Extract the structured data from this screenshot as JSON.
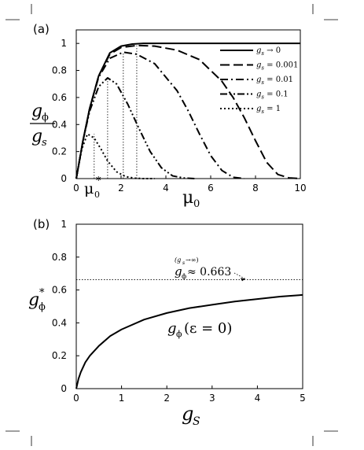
{
  "chart_data": [
    {
      "panel": "(a)",
      "type": "line",
      "ylabel_num": "g",
      "ylabel_num_sub": "ϕ",
      "ylabel_den": "g",
      "ylabel_den_sub": "s",
      "xlabel": "μ",
      "xlabel_sub": "0",
      "xlim": [
        0,
        10
      ],
      "ylim": [
        0,
        1.1
      ],
      "xticks": [
        "0",
        "2",
        "4",
        "6",
        "8",
        "10"
      ],
      "xtick_values": [
        0,
        2,
        4,
        6,
        8,
        10
      ],
      "yticks": [
        "0",
        "0.2",
        "0.4",
        "0.6",
        "0.8",
        "1"
      ],
      "ytick_values": [
        0,
        0.2,
        0.4,
        0.6,
        0.8,
        1
      ],
      "annotation_main": "μ",
      "annotation_sub": "0",
      "annotation_sup": "*",
      "legend_position": "top-right",
      "series": [
        {
          "name": "g",
          "name_sub": "s",
          "name_rest": " → 0",
          "style": "solid",
          "x": [
            0,
            0.3,
            0.6,
            1.0,
            1.5,
            2.0,
            2.5,
            3.0,
            4.0,
            6.0,
            8.0,
            10.0
          ],
          "y": [
            0,
            0.28,
            0.52,
            0.76,
            0.93,
            0.98,
            0.995,
            1.0,
            1.0,
            1.0,
            1.0,
            1.0
          ]
        },
        {
          "name": "g",
          "name_sub": "s",
          "name_rest": " = 0.001",
          "style": "dash",
          "x": [
            0,
            0.3,
            0.6,
            1.0,
            1.5,
            2.0,
            2.7,
            3.5,
            4.5,
            5.5,
            6.5,
            7.0,
            7.5,
            8.0,
            8.5,
            9.0,
            9.5,
            10.0
          ],
          "y": [
            0,
            0.28,
            0.52,
            0.76,
            0.92,
            0.97,
            0.985,
            0.98,
            0.95,
            0.88,
            0.72,
            0.6,
            0.45,
            0.28,
            0.12,
            0.03,
            0.005,
            0
          ]
        },
        {
          "name": "g",
          "name_sub": "s",
          "name_rest": " = 0.01",
          "style": "dashdot",
          "x": [
            0,
            0.3,
            0.6,
            1.0,
            1.5,
            2.1,
            2.7,
            3.5,
            4.5,
            5.0,
            5.5,
            6.0,
            6.5,
            7.0,
            7.5
          ],
          "y": [
            0,
            0.28,
            0.52,
            0.75,
            0.89,
            0.935,
            0.92,
            0.85,
            0.65,
            0.5,
            0.33,
            0.17,
            0.06,
            0.01,
            0
          ]
        },
        {
          "name": "g",
          "name_sub": "s",
          "name_rest": " = 0.1",
          "style": "dashdotdot",
          "x": [
            0,
            0.3,
            0.6,
            1.0,
            1.4,
            1.8,
            2.3,
            2.8,
            3.3,
            3.8,
            4.3,
            4.8,
            5.3
          ],
          "y": [
            0,
            0.28,
            0.5,
            0.68,
            0.745,
            0.7,
            0.55,
            0.37,
            0.2,
            0.08,
            0.02,
            0.004,
            0
          ]
        },
        {
          "name": "g",
          "name_sub": "s",
          "name_rest": " = 1",
          "style": "dotted",
          "x": [
            0,
            0.25,
            0.5,
            0.8,
            1.1,
            1.4,
            1.8,
            2.2,
            2.6,
            3.0,
            3.5
          ],
          "y": [
            0,
            0.22,
            0.33,
            0.3,
            0.22,
            0.13,
            0.05,
            0.015,
            0.003,
            0,
            0
          ]
        }
      ],
      "peak_markers": [
        {
          "x": 0.8,
          "y": 0.33
        },
        {
          "x": 1.4,
          "y": 0.745
        },
        {
          "x": 2.1,
          "y": 0.935
        },
        {
          "x": 2.7,
          "y": 0.985
        }
      ]
    },
    {
      "panel": "(b)",
      "type": "line",
      "ylabel": "g",
      "ylabel_sub": "ϕ",
      "ylabel_sup": "*",
      "xlabel": "g",
      "xlabel_sub": "S",
      "xlim": [
        0,
        5
      ],
      "ylim": [
        0,
        1.0
      ],
      "xticks": [
        "0",
        "1",
        "2",
        "3",
        "4",
        "5"
      ],
      "xtick_values": [
        0,
        1,
        2,
        3,
        4,
        5
      ],
      "yticks": [
        "0",
        "0.2",
        "0.4",
        "0.6",
        "0.8",
        "1"
      ],
      "ytick_values": [
        0,
        0.2,
        0.4,
        0.6,
        0.8,
        1
      ],
      "asymptote_value": 0.663,
      "asymptote_label_main": "g",
      "asymptote_label_sub": "ϕ",
      "asymptote_label_sup": "(g",
      "asymptote_label_sup_sub": "s",
      "asymptote_label_sup_rest": " →∞)",
      "asymptote_label_rest": " ≈ 0.663",
      "curve_label_main": "g",
      "curve_label_sub": "ϕ",
      "curve_label_rest": "(ε = 0)",
      "series": [
        {
          "style": "solid",
          "x": [
            0,
            0.05,
            0.1,
            0.2,
            0.3,
            0.5,
            0.75,
            1.0,
            1.5,
            2.0,
            2.5,
            3.0,
            3.5,
            4.0,
            4.5,
            5.0
          ],
          "y": [
            0,
            0.06,
            0.1,
            0.16,
            0.2,
            0.26,
            0.32,
            0.36,
            0.42,
            0.46,
            0.49,
            0.51,
            0.53,
            0.545,
            0.56,
            0.57
          ]
        }
      ]
    }
  ]
}
